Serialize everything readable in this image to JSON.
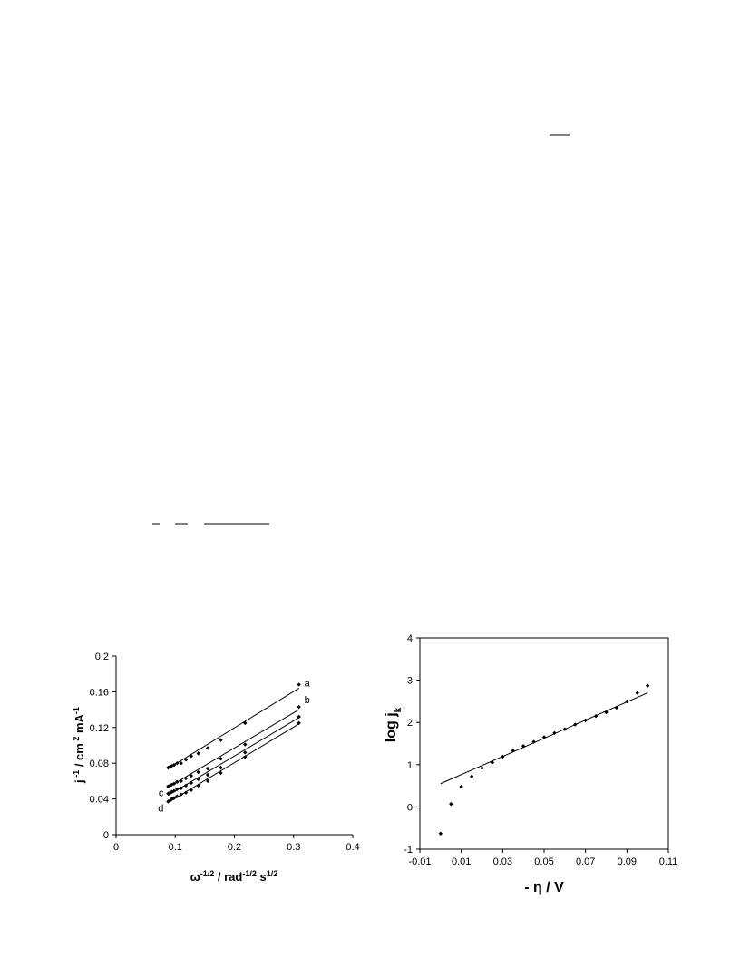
{
  "chart_data": [
    {
      "type": "scatter",
      "frame": false,
      "marker": "diamond",
      "color": "#000000",
      "xlabel": [
        {
          "text": "ω"
        },
        {
          "text": "-1/2",
          "sup": true
        },
        {
          "text": " / rad"
        },
        {
          "text": "-1/2",
          "sup": true
        },
        {
          "text": " s"
        },
        {
          "text": "1/2",
          "sup": true
        }
      ],
      "ylabel": [
        {
          "text": "j"
        },
        {
          "text": " -1",
          "sup": true
        },
        {
          "text": " / cm"
        },
        {
          "text": " 2",
          "sup": true
        },
        {
          "text": " mA"
        },
        {
          "text": "-1",
          "sup": true
        }
      ],
      "xlim": [
        0,
        0.4
      ],
      "xticks": [
        0,
        0.1,
        0.2,
        0.3,
        0.4
      ],
      "ylim": [
        0,
        0.2
      ],
      "yticks": [
        0,
        0.04,
        0.08,
        0.12,
        0.16,
        0.2
      ],
      "series": [
        {
          "name": "a",
          "x": [
            0.088,
            0.091,
            0.094,
            0.098,
            0.103,
            0.11,
            0.118,
            0.127,
            0.139,
            0.155,
            0.177,
            0.218,
            0.309
          ],
          "values": [
            0.075,
            0.076,
            0.077,
            0.078,
            0.08,
            0.08,
            0.084,
            0.088,
            0.091,
            0.097,
            0.106,
            0.125,
            0.168
          ],
          "fit_x": [
            0.088,
            0.309
          ],
          "fit_y": [
            0.074,
            0.164
          ]
        },
        {
          "name": "b",
          "x": [
            0.088,
            0.091,
            0.094,
            0.098,
            0.103,
            0.11,
            0.118,
            0.127,
            0.139,
            0.155,
            0.177,
            0.218,
            0.309
          ],
          "values": [
            0.054,
            0.055,
            0.056,
            0.057,
            0.059,
            0.06,
            0.063,
            0.066,
            0.07,
            0.074,
            0.085,
            0.101,
            0.143
          ],
          "fit_x": [
            0.088,
            0.309
          ],
          "fit_y": [
            0.053,
            0.14
          ]
        },
        {
          "name": "c",
          "x": [
            0.088,
            0.091,
            0.094,
            0.098,
            0.103,
            0.11,
            0.118,
            0.127,
            0.139,
            0.155,
            0.177,
            0.218,
            0.309
          ],
          "values": [
            0.046,
            0.047,
            0.048,
            0.049,
            0.051,
            0.052,
            0.055,
            0.058,
            0.062,
            0.067,
            0.075,
            0.092,
            0.132
          ],
          "fit_x": [
            0.088,
            0.309
          ],
          "fit_y": [
            0.044,
            0.131
          ]
        },
        {
          "name": "d",
          "x": [
            0.088,
            0.091,
            0.094,
            0.098,
            0.103,
            0.11,
            0.118,
            0.127,
            0.139,
            0.155,
            0.177,
            0.218,
            0.309
          ],
          "values": [
            0.037,
            0.038,
            0.04,
            0.041,
            0.043,
            0.045,
            0.047,
            0.05,
            0.055,
            0.06,
            0.069,
            0.087,
            0.125
          ],
          "fit_x": [
            0.088,
            0.309
          ],
          "fit_y": [
            0.036,
            0.124
          ]
        }
      ]
    },
    {
      "type": "scatter",
      "frame": true,
      "marker": "diamond",
      "color": "#000000",
      "xlabel": [
        {
          "text": "- η / V"
        }
      ],
      "ylabel": [
        {
          "text": "log j"
        },
        {
          "text": "k",
          "sub": true
        }
      ],
      "xlim": [
        -0.01,
        0.11
      ],
      "xticks": [
        -0.01,
        0.01,
        0.03,
        0.05,
        0.07,
        0.09,
        0.11
      ],
      "ylim": [
        -1,
        4
      ],
      "yticks": [
        -1,
        0,
        1,
        2,
        3,
        4
      ],
      "series": [
        {
          "x": [
            0,
            0.005,
            0.01,
            0.015,
            0.02,
            0.025,
            0.03,
            0.035,
            0.04,
            0.045,
            0.05,
            0.055,
            0.06,
            0.065,
            0.07,
            0.075,
            0.08,
            0.085,
            0.09,
            0.095,
            0.1
          ],
          "values": [
            -0.63,
            0.07,
            0.48,
            0.72,
            0.92,
            1.05,
            1.19,
            1.33,
            1.44,
            1.54,
            1.65,
            1.75,
            1.84,
            1.95,
            2.05,
            2.15,
            2.24,
            2.35,
            2.5,
            2.7,
            2.87
          ],
          "fit_x": [
            0,
            0.1
          ],
          "fit_y": [
            0.55,
            2.7
          ]
        }
      ]
    }
  ]
}
